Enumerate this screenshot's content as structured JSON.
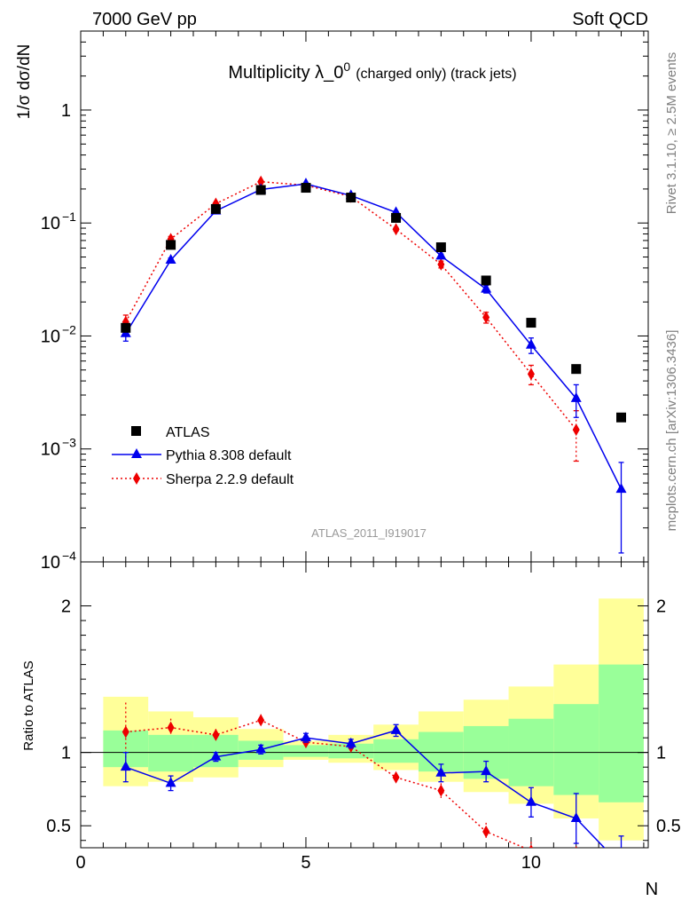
{
  "header": {
    "left": "7000 GeV pp",
    "right": "Soft QCD"
  },
  "side_labels": {
    "rivet": "Rivet 3.1.10, ≥ 2.5M events",
    "mcplots": "mcplots.cern.ch [arXiv:1306.3436]"
  },
  "chart_data": {
    "type": "line",
    "title": "Multiplicity λ_0",
    "title_sup": "0",
    "title_suffix": "(charged only) (track jets)",
    "watermark": "ATLAS_2011_I919017",
    "xlabel": "N",
    "ylabel": "1/σ dσ/dN",
    "ratio_ylabel": "Ratio to ATLAS",
    "xlim": [
      0,
      12.6
    ],
    "ylim": [
      0.0001,
      5
    ],
    "yscale": "log",
    "ratio_ylim": [
      0.35,
      2.3
    ],
    "x_ticks": [
      0,
      5,
      10
    ],
    "ratio_ticks": [
      0.5,
      1,
      2
    ],
    "legend_position": "lower-left",
    "colors": {
      "ATLAS": "#000000",
      "Pythia": "#0000ee",
      "Sherpa": "#ee0000",
      "band_inner": "#99ff99",
      "band_outer": "#ffff99"
    },
    "series": [
      {
        "name": "ATLAS",
        "marker": "square",
        "x": [
          1,
          2,
          3,
          4,
          5,
          6,
          7,
          8,
          9,
          10,
          11,
          12
        ],
        "y": [
          0.0118,
          0.064,
          0.133,
          0.196,
          0.205,
          0.168,
          0.111,
          0.061,
          0.031,
          0.0131,
          0.0051,
          0.0019
        ]
      },
      {
        "name": "Pythia 8.308 default",
        "marker": "triangle",
        "line": "solid",
        "x": [
          1,
          2,
          3,
          4,
          5,
          6,
          7,
          8,
          9,
          10,
          11,
          12
        ],
        "y": [
          0.0105,
          0.047,
          0.128,
          0.198,
          0.222,
          0.175,
          0.124,
          0.051,
          0.026,
          0.0083,
          0.0028,
          0.00044
        ],
        "yerr": [
          0.0015,
          0.002,
          0.002,
          0.002,
          0.002,
          0.002,
          0.002,
          0.002,
          0.002,
          0.0013,
          0.0009,
          0.00032
        ]
      },
      {
        "name": "Sherpa 2.2.9 default",
        "marker": "diamond",
        "line": "dotted",
        "x": [
          1,
          2,
          3,
          4,
          5,
          6,
          7,
          8,
          9,
          10,
          11
        ],
        "y": [
          0.0133,
          0.072,
          0.148,
          0.232,
          0.216,
          0.171,
          0.088,
          0.043,
          0.0146,
          0.0046,
          0.00148
        ],
        "yerr": [
          0.002,
          0.004,
          0.004,
          0.004,
          0.004,
          0.004,
          0.003,
          0.003,
          0.0016,
          0.0009,
          0.0007
        ]
      }
    ],
    "ratio": {
      "x": [
        1,
        2,
        3,
        4,
        5,
        6,
        7,
        8,
        9,
        10,
        11,
        12
      ],
      "pythia": [
        0.9,
        0.79,
        0.97,
        1.02,
        1.1,
        1.06,
        1.15,
        0.86,
        0.87,
        0.66,
        0.55,
        0.23
      ],
      "pythia_err": [
        0.1,
        0.05,
        0.03,
        0.03,
        0.03,
        0.03,
        0.04,
        0.06,
        0.07,
        0.1,
        0.17,
        0.2
      ],
      "sherpa": [
        1.14,
        1.17,
        1.12,
        1.22,
        1.07,
        1.04,
        0.83,
        0.74,
        0.46,
        0.33,
        0.29
      ],
      "sherpa_err": [
        0.2,
        0.06,
        0.04,
        0.04,
        0.03,
        0.03,
        0.03,
        0.05,
        0.06,
        0.06,
        0.1
      ],
      "band_inner": [
        [
          0.9,
          1.15
        ],
        [
          0.87,
          1.12
        ],
        [
          0.9,
          1.12
        ],
        [
          0.95,
          1.08
        ],
        [
          0.97,
          1.05
        ],
        [
          0.96,
          1.06
        ],
        [
          0.93,
          1.09
        ],
        [
          0.87,
          1.14
        ],
        [
          0.82,
          1.18
        ],
        [
          0.77,
          1.23
        ],
        [
          0.71,
          1.33
        ],
        [
          0.66,
          1.6
        ]
      ],
      "band_outer": [
        [
          0.77,
          1.38
        ],
        [
          0.8,
          1.28
        ],
        [
          0.83,
          1.24
        ],
        [
          0.9,
          1.16
        ],
        [
          0.95,
          1.08
        ],
        [
          0.93,
          1.12
        ],
        [
          0.88,
          1.19
        ],
        [
          0.8,
          1.28
        ],
        [
          0.73,
          1.36
        ],
        [
          0.65,
          1.45
        ],
        [
          0.55,
          1.6
        ],
        [
          0.4,
          2.05
        ]
      ]
    }
  }
}
